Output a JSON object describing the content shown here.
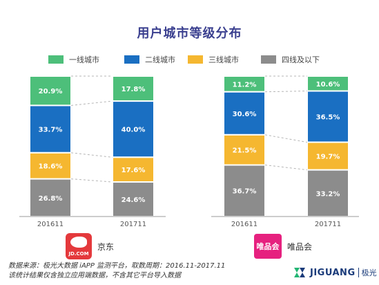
{
  "title": "用户城市等级分布",
  "legend": [
    {
      "label": "一线城市",
      "color": "#4dbf7a"
    },
    {
      "label": "二线城市",
      "color": "#1a6fc2"
    },
    {
      "label": "三线城市",
      "color": "#f5b730"
    },
    {
      "label": "四线及以下",
      "color": "#8c8c8c"
    }
  ],
  "chart_data": [
    {
      "type": "bar",
      "stacked": true,
      "platform": "京东",
      "categories": [
        "201611",
        "201711"
      ],
      "series": [
        {
          "name": "一线城市",
          "values": [
            20.9,
            17.8
          ],
          "labels": [
            "20.9%",
            "17.8%"
          ]
        },
        {
          "name": "二线城市",
          "values": [
            33.7,
            40.0
          ],
          "labels": [
            "33.7%",
            "40.0%"
          ]
        },
        {
          "name": "三线城市",
          "values": [
            18.6,
            17.6
          ],
          "labels": [
            "18.6%",
            "17.6%"
          ]
        },
        {
          "name": "四线及以下",
          "values": [
            26.8,
            24.6
          ],
          "labels": [
            "26.8%",
            "24.6%"
          ]
        }
      ]
    },
    {
      "type": "bar",
      "stacked": true,
      "platform": "唯品会",
      "categories": [
        "201611",
        "201711"
      ],
      "series": [
        {
          "name": "一线城市",
          "values": [
            11.2,
            10.6
          ],
          "labels": [
            "11.2%",
            "10.6%"
          ]
        },
        {
          "name": "二线城市",
          "values": [
            30.6,
            36.5
          ],
          "labels": [
            "30.6%",
            "36.5%"
          ]
        },
        {
          "name": "三线城市",
          "values": [
            21.5,
            19.7
          ],
          "labels": [
            "21.5%",
            "19.7%"
          ]
        },
        {
          "name": "四线及以下",
          "values": [
            36.7,
            33.2
          ],
          "labels": [
            "36.7%",
            "33.2%"
          ]
        }
      ]
    }
  ],
  "brands": {
    "jd": {
      "logo_text": "JD.COM",
      "name": "京东"
    },
    "vip": {
      "logo_text": "唯品会",
      "name": "唯品会"
    }
  },
  "footer": {
    "source_line1": "数据来源：极光大数据 iAPP 监测平台，取数周期：2016.11-2017.11",
    "source_line2": "该统计结果仅含独立应用端数据，不含其它平台导入数据",
    "company_en": "JIGUANG",
    "company_cn": "极光"
  }
}
